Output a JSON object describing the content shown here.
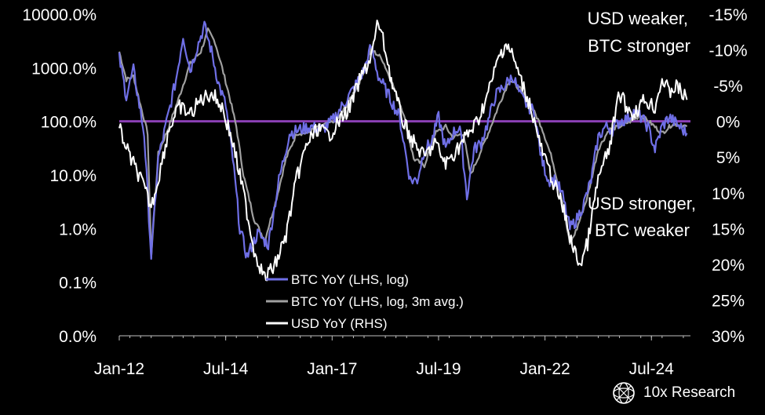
{
  "brand": {
    "name": "10x Research",
    "logo_icon": "sphere-logo-icon"
  },
  "chart_data": {
    "type": "line",
    "left_axis": {
      "scale": "log",
      "ticks": [
        "0.0%",
        "0.1%",
        "1.0%",
        "10.0%",
        "100.0%",
        "1000.0%",
        "10000.0%"
      ],
      "ylim_pct": [
        0.01,
        10000
      ]
    },
    "right_axis": {
      "inverted": true,
      "ticks": [
        "-15%",
        "-10%",
        "-5%",
        "0%",
        "5%",
        "10%",
        "15%",
        "20%",
        "25%",
        "30%"
      ],
      "ylim_pct": [
        30,
        -15
      ]
    },
    "x_axis": {
      "ticks": [
        "Jan-12",
        "Jul-14",
        "Jan-17",
        "Jul-19",
        "Jan-22",
        "Jul-24"
      ],
      "range": [
        "2012-01",
        "2025-06"
      ]
    },
    "reference_line": {
      "left_value_pct": 100,
      "color": "#8b3fb5"
    },
    "annotations": {
      "top": [
        "USD weaker,",
        "BTC stronger"
      ],
      "bottom": [
        "USD stronger,",
        "BTC weaker"
      ]
    },
    "legend": {
      "placement": "center-left"
    },
    "series": [
      {
        "name": "BTC YoY (LHS, log)",
        "axis": "left",
        "color": "#6f6fe6",
        "points": [
          [
            "2012-01",
            1500
          ],
          [
            "2012-03",
            300
          ],
          [
            "2012-05",
            900
          ],
          [
            "2012-08",
            60
          ],
          [
            "2012-10",
            0.3
          ],
          [
            "2012-12",
            20
          ],
          [
            "2013-03",
            150
          ],
          [
            "2013-05",
            600
          ],
          [
            "2013-07",
            4000
          ],
          [
            "2013-09",
            900
          ],
          [
            "2013-11",
            2500
          ],
          [
            "2014-01",
            6000
          ],
          [
            "2014-03",
            2000
          ],
          [
            "2014-05",
            500
          ],
          [
            "2014-07",
            200
          ],
          [
            "2014-09",
            20
          ],
          [
            "2014-11",
            1
          ],
          [
            "2015-01",
            0.3
          ],
          [
            "2015-04",
            0.8
          ],
          [
            "2015-07",
            0.5
          ],
          [
            "2015-10",
            8
          ],
          [
            "2016-01",
            60
          ],
          [
            "2016-04",
            70
          ],
          [
            "2016-07",
            80
          ],
          [
            "2016-10",
            70
          ],
          [
            "2017-01",
            100
          ],
          [
            "2017-04",
            200
          ],
          [
            "2017-07",
            400
          ],
          [
            "2017-10",
            900
          ],
          [
            "2017-12",
            2500
          ],
          [
            "2018-02",
            700
          ],
          [
            "2018-05",
            300
          ],
          [
            "2018-08",
            120
          ],
          [
            "2018-11",
            8
          ],
          [
            "2019-01",
            8
          ],
          [
            "2019-03",
            30
          ],
          [
            "2019-05",
            40
          ],
          [
            "2019-07",
            120
          ],
          [
            "2019-09",
            30
          ],
          [
            "2019-11",
            60
          ],
          [
            "2020-01",
            80
          ],
          [
            "2020-03",
            4
          ],
          [
            "2020-05",
            30
          ],
          [
            "2020-07",
            40
          ],
          [
            "2020-09",
            100
          ],
          [
            "2020-11",
            300
          ],
          [
            "2021-02",
            500
          ],
          [
            "2021-04",
            700
          ],
          [
            "2021-06",
            300
          ],
          [
            "2021-08",
            200
          ],
          [
            "2021-10",
            150
          ],
          [
            "2021-12",
            20
          ],
          [
            "2022-02",
            8
          ],
          [
            "2022-04",
            8
          ],
          [
            "2022-06",
            4
          ],
          [
            "2022-08",
            1
          ],
          [
            "2022-10",
            1.5
          ],
          [
            "2022-12",
            3
          ],
          [
            "2023-02",
            8
          ],
          [
            "2023-04",
            50
          ],
          [
            "2023-06",
            80
          ],
          [
            "2023-08",
            70
          ],
          [
            "2023-10",
            100
          ],
          [
            "2023-12",
            110
          ],
          [
            "2024-02",
            150
          ],
          [
            "2024-04",
            120
          ],
          [
            "2024-06",
            80
          ],
          [
            "2024-08",
            30
          ],
          [
            "2024-10",
            80
          ],
          [
            "2024-12",
            120
          ],
          [
            "2025-02",
            90
          ],
          [
            "2025-05",
            60
          ]
        ]
      },
      {
        "name": "BTC YoY (LHS, log, 3m avg.)",
        "axis": "left",
        "color": "#a0a0a0",
        "points": [
          [
            "2012-01",
            2000
          ],
          [
            "2012-03",
            600
          ],
          [
            "2012-05",
            700
          ],
          [
            "2012-07",
            200
          ],
          [
            "2012-09",
            60
          ],
          [
            "2012-10",
            0.3
          ],
          [
            "2012-12",
            25
          ],
          [
            "2013-03",
            80
          ],
          [
            "2013-06",
            300
          ],
          [
            "2013-09",
            1200
          ],
          [
            "2013-12",
            2000
          ],
          [
            "2014-02",
            5000
          ],
          [
            "2014-04",
            3000
          ],
          [
            "2014-06",
            1000
          ],
          [
            "2014-08",
            300
          ],
          [
            "2014-10",
            80
          ],
          [
            "2014-12",
            10
          ],
          [
            "2015-03",
            1.5
          ],
          [
            "2015-06",
            0.6
          ],
          [
            "2015-09",
            3
          ],
          [
            "2015-12",
            20
          ],
          [
            "2016-03",
            60
          ],
          [
            "2016-06",
            60
          ],
          [
            "2016-09",
            80
          ],
          [
            "2016-12",
            90
          ],
          [
            "2017-03",
            120
          ],
          [
            "2017-06",
            250
          ],
          [
            "2017-09",
            600
          ],
          [
            "2017-12",
            2200
          ],
          [
            "2018-03",
            1500
          ],
          [
            "2018-06",
            500
          ],
          [
            "2018-09",
            150
          ],
          [
            "2018-12",
            20
          ],
          [
            "2019-03",
            15
          ],
          [
            "2019-06",
            60
          ],
          [
            "2019-09",
            80
          ],
          [
            "2019-11",
            50
          ],
          [
            "2020-02",
            60
          ],
          [
            "2020-04",
            10
          ],
          [
            "2020-06",
            20
          ],
          [
            "2020-09",
            60
          ],
          [
            "2020-12",
            200
          ],
          [
            "2021-03",
            600
          ],
          [
            "2021-06",
            400
          ],
          [
            "2021-09",
            200
          ],
          [
            "2021-12",
            80
          ],
          [
            "2022-03",
            20
          ],
          [
            "2022-06",
            3
          ],
          [
            "2022-08",
            0.5
          ],
          [
            "2022-10",
            1
          ],
          [
            "2023-01",
            4
          ],
          [
            "2023-04",
            30
          ],
          [
            "2023-07",
            70
          ],
          [
            "2023-10",
            80
          ],
          [
            "2024-01",
            100
          ],
          [
            "2024-04",
            130
          ],
          [
            "2024-07",
            90
          ],
          [
            "2024-10",
            60
          ],
          [
            "2025-01",
            90
          ],
          [
            "2025-05",
            80
          ]
        ]
      },
      {
        "name": "USD YoY (RHS)",
        "axis": "right",
        "color": "#ffffff",
        "points": [
          [
            "2012-01",
            1
          ],
          [
            "2012-04",
            5
          ],
          [
            "2012-07",
            8
          ],
          [
            "2012-10",
            12
          ],
          [
            "2012-12",
            8
          ],
          [
            "2013-03",
            1
          ],
          [
            "2013-06",
            -2
          ],
          [
            "2013-09",
            -1
          ],
          [
            "2013-12",
            -3
          ],
          [
            "2014-03",
            -4
          ],
          [
            "2014-06",
            -2
          ],
          [
            "2014-09",
            3
          ],
          [
            "2014-12",
            10
          ],
          [
            "2015-03",
            18
          ],
          [
            "2015-06",
            22
          ],
          [
            "2015-09",
            20
          ],
          [
            "2015-12",
            16
          ],
          [
            "2016-03",
            8
          ],
          [
            "2016-06",
            3
          ],
          [
            "2016-09",
            1
          ],
          [
            "2016-12",
            2
          ],
          [
            "2017-03",
            0
          ],
          [
            "2017-06",
            -2
          ],
          [
            "2017-09",
            -6
          ],
          [
            "2017-12",
            -9
          ],
          [
            "2018-02",
            -14
          ],
          [
            "2018-04",
            -10
          ],
          [
            "2018-06",
            -5
          ],
          [
            "2018-09",
            0
          ],
          [
            "2018-12",
            3
          ],
          [
            "2019-03",
            5
          ],
          [
            "2019-06",
            3
          ],
          [
            "2019-09",
            6
          ],
          [
            "2019-12",
            4
          ],
          [
            "2020-03",
            2
          ],
          [
            "2020-06",
            0
          ],
          [
            "2020-09",
            -4
          ],
          [
            "2020-12",
            -9
          ],
          [
            "2021-02",
            -11
          ],
          [
            "2021-04",
            -9
          ],
          [
            "2021-06",
            -6
          ],
          [
            "2021-09",
            -2
          ],
          [
            "2021-12",
            4
          ],
          [
            "2022-03",
            8
          ],
          [
            "2022-06",
            12
          ],
          [
            "2022-09",
            18
          ],
          [
            "2022-11",
            20
          ],
          [
            "2023-01",
            17
          ],
          [
            "2023-04",
            8
          ],
          [
            "2023-07",
            4
          ],
          [
            "2023-10",
            -4
          ],
          [
            "2023-12",
            -2
          ],
          [
            "2024-02",
            -1
          ],
          [
            "2024-05",
            -3
          ],
          [
            "2024-08",
            -2
          ],
          [
            "2024-10",
            -6
          ],
          [
            "2024-12",
            -4
          ],
          [
            "2025-02",
            -5
          ],
          [
            "2025-05",
            -3
          ]
        ]
      }
    ]
  }
}
